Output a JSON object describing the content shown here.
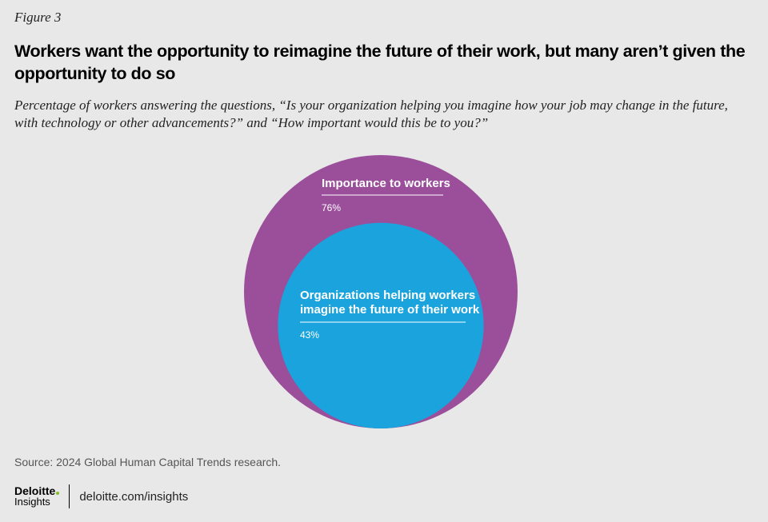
{
  "figure_label": "Figure 3",
  "title": "Workers want the opportunity to reimagine the future of their work, but many aren’t given the opportunity to do so",
  "subtitle": "Percentage of workers answering the questions, “Is your organization helping you imagine how your job may change in the future, with technology or other advancements?” and “How important would this be to you?”",
  "colors": {
    "background": "#e8e8e8",
    "outer_circle": "#9b4f9b",
    "inner_circle": "#1aa3dc",
    "text_on_circle": "#ffffff"
  },
  "chart_data": {
    "type": "nested-circles",
    "series": [
      {
        "name": "Importance to workers",
        "value": 76,
        "value_label": "76%"
      },
      {
        "name": "Organizations helping workers imagine the future of their work",
        "value": 43,
        "value_label": "43%"
      }
    ]
  },
  "source": "Source: 2024 Global Human Capital Trends research.",
  "footer": {
    "logo_top": "Deloitte",
    "logo_bottom": "Insights",
    "url": "deloitte.com/insights"
  }
}
